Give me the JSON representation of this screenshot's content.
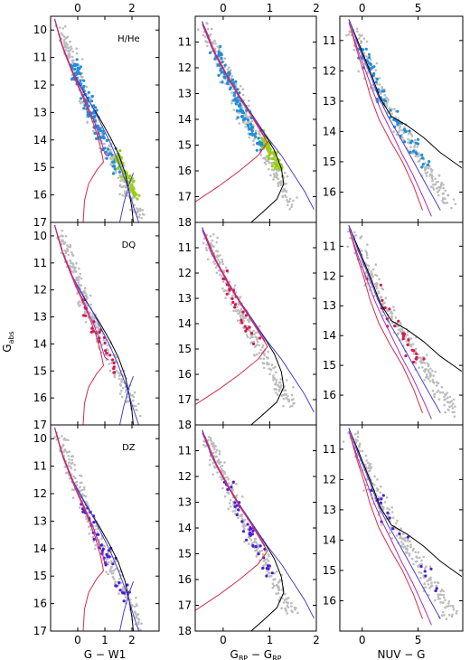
{
  "figure": {
    "ylabel": "G",
    "ylabel_sub": "abs"
  },
  "colors": {
    "background_points": "#bdbdbd",
    "hhe_blue": "#1e90d8",
    "hhe_green": "#9acd1a",
    "dq": "#d6174f",
    "dz": "#4b1fd8",
    "model_black": "#000000",
    "model_red": "#d62b4b",
    "model_blue": "#4b3fd6",
    "model_purple": "#b02bb0"
  },
  "chart_data": [
    {
      "row": 0,
      "col": 0,
      "type": "scatter",
      "label": "H/He",
      "xlabel": "G − W1",
      "xlim": [
        -1,
        3
      ],
      "ylim": [
        17,
        9.5
      ],
      "xticks": [
        0,
        1,
        2
      ],
      "xticks_top": [
        0,
        2
      ],
      "yticks": [
        10,
        11,
        12,
        13,
        14,
        15,
        16,
        17
      ],
      "groups": [
        "gray",
        "blue",
        "green"
      ]
    },
    {
      "row": 0,
      "col": 1,
      "type": "scatter",
      "label": "",
      "xlabel": "G_BP − G_RP",
      "xlim": [
        -0.6,
        2
      ],
      "ylim": [
        18,
        10
      ],
      "xticks": [
        0,
        1,
        2
      ],
      "xticks_top": [
        0,
        1,
        2
      ],
      "yticks": [
        11,
        12,
        13,
        14,
        15,
        16,
        17,
        18
      ],
      "groups": [
        "gray",
        "blue",
        "green"
      ]
    },
    {
      "row": 0,
      "col": 2,
      "type": "scatter",
      "label": "",
      "xlabel": "NUV − G",
      "xlim": [
        -2,
        9
      ],
      "ylim": [
        17,
        10.2
      ],
      "xticks": [
        0,
        5
      ],
      "xticks_top": [
        0,
        5
      ],
      "yticks": [
        11,
        12,
        13,
        14,
        15,
        16
      ],
      "groups": [
        "gray",
        "blue"
      ]
    },
    {
      "row": 1,
      "col": 0,
      "type": "scatter",
      "label": "DQ",
      "xlabel": "G − W1",
      "xlim": [
        -1,
        3
      ],
      "ylim": [
        17,
        9.5
      ],
      "xticks": [
        0,
        1,
        2
      ],
      "yticks": [
        10,
        11,
        12,
        13,
        14,
        15,
        16,
        17
      ],
      "groups": [
        "gray",
        "dq"
      ]
    },
    {
      "row": 1,
      "col": 1,
      "type": "scatter",
      "label": "",
      "xlabel": "G_BP − G_RP",
      "xlim": [
        -0.6,
        2
      ],
      "ylim": [
        18,
        10
      ],
      "xticks": [
        0,
        1,
        2
      ],
      "yticks": [
        11,
        12,
        13,
        14,
        15,
        16,
        17,
        18
      ],
      "groups": [
        "gray",
        "dq"
      ]
    },
    {
      "row": 1,
      "col": 2,
      "type": "scatter",
      "label": "",
      "xlabel": "NUV − G",
      "xlim": [
        -2,
        9
      ],
      "ylim": [
        17,
        10.2
      ],
      "xticks": [
        0,
        5
      ],
      "yticks": [
        11,
        12,
        13,
        14,
        15,
        16
      ],
      "groups": [
        "gray",
        "dq"
      ]
    },
    {
      "row": 2,
      "col": 0,
      "type": "scatter",
      "label": "DZ",
      "xlabel": "G − W1",
      "xlim": [
        -1,
        3
      ],
      "ylim": [
        17,
        9.5
      ],
      "xticks": [
        0,
        1,
        2
      ],
      "yticks": [
        10,
        11,
        12,
        13,
        14,
        15,
        16,
        17
      ],
      "groups": [
        "gray",
        "dz"
      ]
    },
    {
      "row": 2,
      "col": 1,
      "type": "scatter",
      "label": "",
      "xlabel": "G_BP − G_RP",
      "xlim": [
        -0.6,
        2
      ],
      "ylim": [
        18,
        10
      ],
      "xticks": [
        0,
        1,
        2
      ],
      "yticks": [
        11,
        12,
        13,
        14,
        15,
        16,
        17,
        18
      ],
      "groups": [
        "gray",
        "dz"
      ]
    },
    {
      "row": 2,
      "col": 2,
      "type": "scatter",
      "label": "",
      "xlabel": "NUV − G",
      "xlim": [
        -2,
        9
      ],
      "ylim": [
        17,
        10.2
      ],
      "xticks": [
        0,
        5
      ],
      "yticks": [
        11,
        12,
        13,
        14,
        15,
        16
      ],
      "groups": [
        "gray",
        "dz"
      ]
    }
  ]
}
